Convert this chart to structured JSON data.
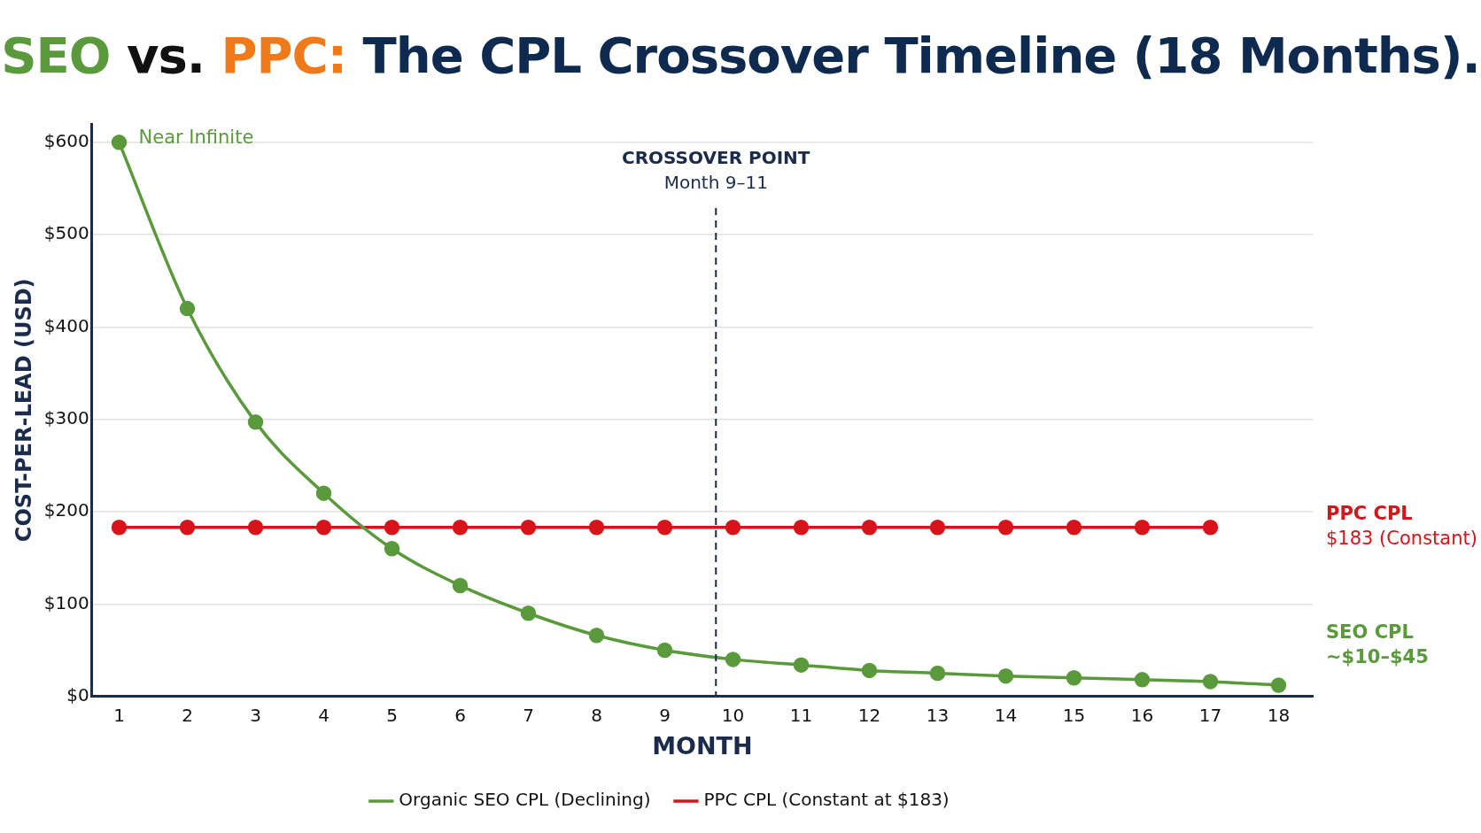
{
  "chart_data": {
    "type": "line",
    "title": "SEO vs. PPC: The CPL Crossover Timeline (18 Months).",
    "xlabel": "MONTH",
    "ylabel": "COST-PER-LEAD (USD)",
    "x": [
      1,
      2,
      3,
      4,
      5,
      6,
      7,
      8,
      9,
      10,
      11,
      12,
      13,
      14,
      15,
      16,
      17,
      18
    ],
    "series": [
      {
        "name": "Organic SEO CPL (Declining)",
        "color": "#5a9a3c",
        "values": [
          600,
          420,
          297,
          220,
          160,
          120,
          90,
          66,
          50,
          40,
          34,
          28,
          25,
          22,
          20,
          18,
          16,
          12
        ]
      },
      {
        "name": "PPC CPL (Constant at $183)",
        "color": "#d7141a",
        "values": [
          183,
          183,
          183,
          183,
          183,
          183,
          183,
          183,
          183,
          183,
          183,
          183,
          183,
          183,
          183,
          183,
          183,
          null
        ]
      }
    ],
    "xlim": [
      0.6,
      18.5
    ],
    "xticks": [
      1,
      2,
      3,
      4,
      5,
      6,
      7,
      8,
      9,
      10,
      11,
      12,
      13,
      14,
      15,
      16,
      17,
      18
    ],
    "ylim": [
      0,
      620
    ],
    "yticks": [
      {
        "value": 0,
        "label": "$0"
      },
      {
        "value": 100,
        "label": "$100"
      },
      {
        "value": 200,
        "label": "$200"
      },
      {
        "value": 300,
        "label": "$300"
      },
      {
        "value": 400,
        "label": "$400"
      },
      {
        "value": 500,
        "label": "$500"
      },
      {
        "value": 600,
        "label": "$600"
      }
    ],
    "ref_lines": [
      {
        "axis": "x",
        "value": 9.75,
        "label": "CROSSOVER POINT\nMonth 9–11",
        "color": "#1a2b4c",
        "line_style": "dashed"
      }
    ],
    "annotations": [
      "Near Infinite",
      "PPC CPL\n$183 (Constant)",
      "SEO CPL\n~$10–$45"
    ],
    "grid": "y",
    "legend": "bottom",
    "marker": "circle",
    "line_style": "solid"
  }
}
